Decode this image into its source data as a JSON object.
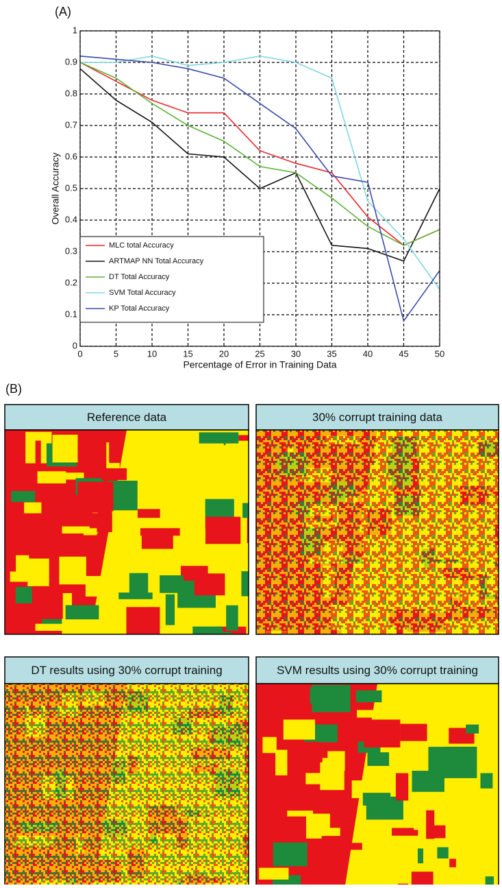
{
  "figure": {
    "panel_a_label": "(A)",
    "panel_b_label": "(B)",
    "map_titles": [
      "Reference data",
      "30% corrupt training data",
      "DT results using 30% corrupt training",
      "SVM results using 30% corrupt training"
    ]
  },
  "chart_data": {
    "type": "line",
    "xlabel": "Percentage of Error in Training Data",
    "ylabel": "Overall Accuracy",
    "x": [
      0,
      5,
      10,
      15,
      20,
      25,
      30,
      35,
      40,
      45,
      50
    ],
    "series": [
      {
        "name": "MLC total Accuracy",
        "color": "#e8262b",
        "values": [
          0.9,
          0.84,
          0.78,
          0.74,
          0.74,
          0.62,
          0.58,
          0.55,
          0.41,
          0.32,
          0.37
        ]
      },
      {
        "name": "ARTMAP NN Total Accuracy",
        "color": "#111111",
        "values": [
          0.88,
          0.78,
          0.71,
          0.61,
          0.6,
          0.5,
          0.55,
          0.32,
          0.31,
          0.27,
          0.5
        ]
      },
      {
        "name": "DT Total Accuracy",
        "color": "#5cb135",
        "values": [
          0.9,
          0.85,
          0.77,
          0.7,
          0.65,
          0.57,
          0.55,
          0.47,
          0.38,
          0.32,
          0.37
        ]
      },
      {
        "name": "SVM Total Accuracy",
        "color": "#7fd6e3",
        "values": [
          0.9,
          0.9,
          0.92,
          0.89,
          0.9,
          0.92,
          0.9,
          0.85,
          0.46,
          0.34,
          0.18
        ]
      },
      {
        "name": "KP Total Accuracy",
        "color": "#3a4aa8",
        "values": [
          0.92,
          0.91,
          0.9,
          0.88,
          0.85,
          0.77,
          0.69,
          0.54,
          0.52,
          0.08,
          0.24
        ]
      }
    ],
    "xlim": [
      0,
      50
    ],
    "xticks": [
      0,
      5,
      10,
      15,
      20,
      25,
      30,
      35,
      40,
      45,
      50
    ],
    "ylim": [
      0,
      1
    ],
    "yticks": [
      0,
      0.1,
      0.2,
      0.3,
      0.4,
      0.5,
      0.6,
      0.7,
      0.8,
      0.9,
      1
    ],
    "grid": true,
    "legend": "lower left"
  }
}
